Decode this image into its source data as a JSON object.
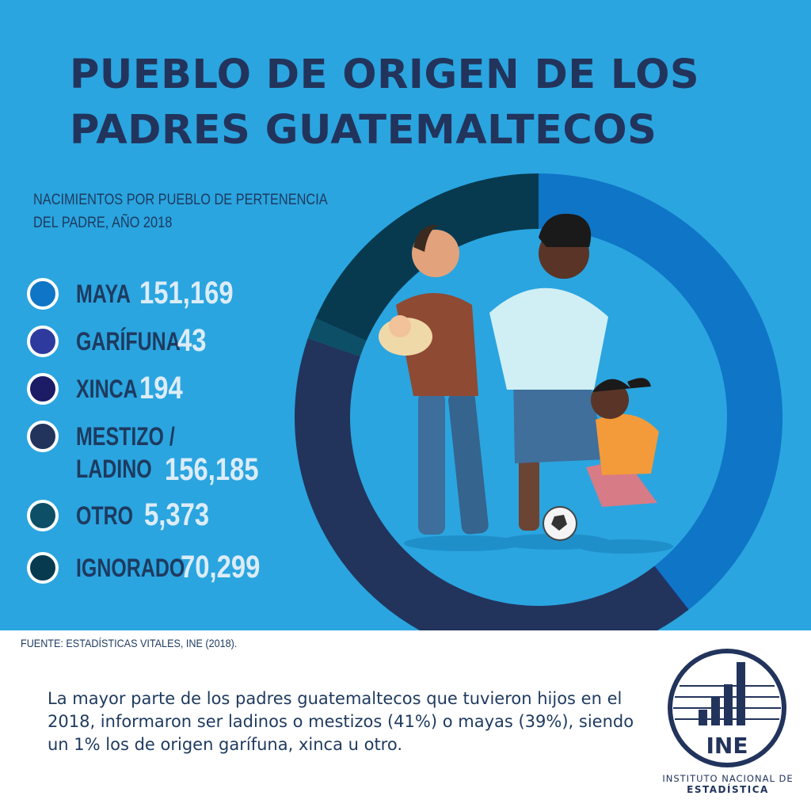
{
  "header": {
    "title_line1": "PUEBLO DE ORIGEN DE LOS",
    "title_line2": "PADRES GUATEMALTECOS"
  },
  "subtitle": {
    "line1": "NACIMIENTOS POR PUEBLO DE PERTENENCIA",
    "line2": "DEL PADRE, AÑO 2018"
  },
  "chart_data": {
    "type": "pie",
    "variant": "donut",
    "title": "PUEBLO DE ORIGEN DE LOS PADRES GUATEMALTECOS",
    "subtitle": "NACIMIENTOS POR PUEBLO DE PERTENENCIA DEL PADRE, AÑO 2018",
    "legend_position": "left",
    "slices": [
      {
        "label": "MAYA",
        "label_lines": [
          "MAYA"
        ],
        "value": 151169,
        "display": "151,169",
        "color": "#0f75c6"
      },
      {
        "label": "GARÍFUNA",
        "label_lines": [
          "GARÍFUNA"
        ],
        "value": 43,
        "display": "43",
        "color": "#2f3a9e"
      },
      {
        "label": "XINCA",
        "label_lines": [
          "XINCA"
        ],
        "value": 194,
        "display": "194",
        "color": "#1c1b66"
      },
      {
        "label": "MESTIZO / LADINO",
        "label_lines": [
          "MESTIZO /",
          "LADINO"
        ],
        "value": 156185,
        "display": "156,185",
        "color": "#22345c"
      },
      {
        "label": "OTRO",
        "label_lines": [
          "OTRO"
        ],
        "value": 5373,
        "display": "5,373",
        "color": "#0d4f66"
      },
      {
        "label": "IGNORADO",
        "label_lines": [
          "IGNORADO"
        ],
        "value": 70299,
        "display": "70,299",
        "color": "#073a4f"
      }
    ]
  },
  "source": "FUENTE: ESTADÍSTICAS VITALES,  INE (2018).",
  "note": "La mayor parte de los padres guatemaltecos que tuvieron hijos en el 2018, informaron ser ladinos o mestizos (41%) o mayas (39%), siendo un 1% los de origen garífuna, xinca u otro.",
  "logo": {
    "text": "INE",
    "caption_line1": "INSTITUTO NACIONAL DE",
    "caption_line2": "ESTADÍSTICA"
  },
  "colors": {
    "background": "#2aa5e0",
    "title": "#22345c",
    "value_text": "#dcecf8"
  }
}
